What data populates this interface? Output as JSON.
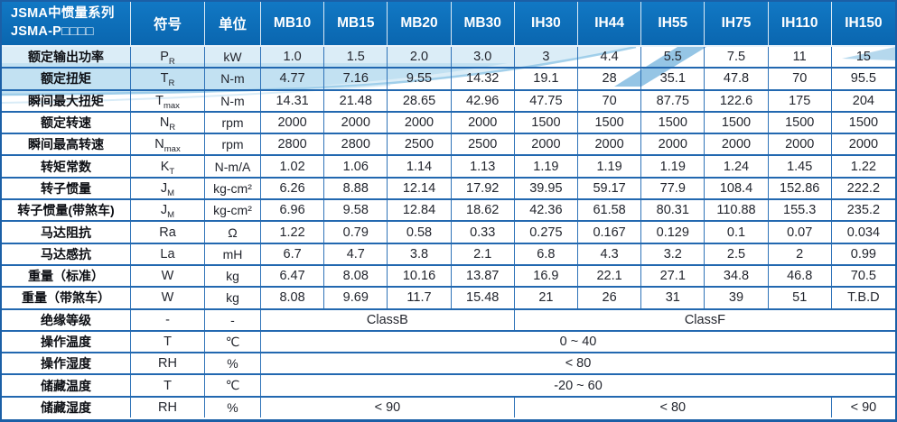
{
  "table": {
    "title_line1": "JSMA中惯量系列",
    "title_line2": "JSMA-P□□□□",
    "col_symbol": "符号",
    "col_unit": "单位",
    "models": [
      "MB10",
      "MB15",
      "MB20",
      "MB30",
      "IH30",
      "IH44",
      "IH55",
      "IH75",
      "IH110",
      "IH150"
    ],
    "rows": [
      {
        "label": "额定输出功率",
        "sym": "P",
        "sub": "R",
        "unit": "kW",
        "values": [
          "1.0",
          "1.5",
          "2.0",
          "3.0",
          "3",
          "4.4",
          "5.5",
          "7.5",
          "11",
          "15"
        ]
      },
      {
        "label": "额定扭矩",
        "sym": "T",
        "sub": "R",
        "unit": "N-m",
        "values": [
          "4.77",
          "7.16",
          "9.55",
          "14.32",
          "19.1",
          "28",
          "35.1",
          "47.8",
          "70",
          "95.5"
        ]
      },
      {
        "label": "瞬间最大扭矩",
        "sym": "T",
        "sub": "max",
        "unit": "N-m",
        "values": [
          "14.31",
          "21.48",
          "28.65",
          "42.96",
          "47.75",
          "70",
          "87.75",
          "122.6",
          "175",
          "204"
        ]
      },
      {
        "label": "额定转速",
        "sym": "N",
        "sub": "R",
        "unit": "rpm",
        "values": [
          "2000",
          "2000",
          "2000",
          "2000",
          "1500",
          "1500",
          "1500",
          "1500",
          "1500",
          "1500"
        ]
      },
      {
        "label": "瞬间最高转速",
        "sym": "N",
        "sub": "max",
        "unit": "rpm",
        "values": [
          "2800",
          "2800",
          "2500",
          "2500",
          "2000",
          "2000",
          "2000",
          "2000",
          "2000",
          "2000"
        ]
      },
      {
        "label": "转矩常数",
        "sym": "K",
        "sub": "T",
        "unit": "N-m/A",
        "values": [
          "1.02",
          "1.06",
          "1.14",
          "1.13",
          "1.19",
          "1.19",
          "1.19",
          "1.24",
          "1.45",
          "1.22"
        ]
      },
      {
        "label": "转子惯量",
        "sym": "J",
        "sub": "M",
        "unit": "kg-cm²",
        "values": [
          "6.26",
          "8.88",
          "12.14",
          "17.92",
          "39.95",
          "59.17",
          "77.9",
          "108.4",
          "152.86",
          "222.2"
        ]
      },
      {
        "label": "转子惯量(带煞车)",
        "sym": "J",
        "sub": "M",
        "unit": "kg-cm²",
        "values": [
          "6.96",
          "9.58",
          "12.84",
          "18.62",
          "42.36",
          "61.58",
          "80.31",
          "110.88",
          "155.3",
          "235.2"
        ]
      },
      {
        "label": "马达阻抗",
        "sym": "Ra",
        "sub": "",
        "unit": "Ω",
        "values": [
          "1.22",
          "0.79",
          "0.58",
          "0.33",
          "0.275",
          "0.167",
          "0.129",
          "0.1",
          "0.07",
          "0.034"
        ]
      },
      {
        "label": "马达感抗",
        "sym": "La",
        "sub": "",
        "unit": "mH",
        "values": [
          "6.7",
          "4.7",
          "3.8",
          "2.1",
          "6.8",
          "4.3",
          "3.2",
          "2.5",
          "2",
          "0.99"
        ]
      },
      {
        "label": "重量（标准）",
        "sym": "W",
        "sub": "",
        "unit": "kg",
        "values": [
          "6.47",
          "8.08",
          "10.16",
          "13.87",
          "16.9",
          "22.1",
          "27.1",
          "34.8",
          "46.8",
          "70.5"
        ]
      },
      {
        "label": "重量（带煞车）",
        "sym": "W",
        "sub": "",
        "unit": "kg",
        "values": [
          "8.08",
          "9.69",
          "11.7",
          "15.48",
          "21",
          "26",
          "31",
          "39",
          "51",
          "T.B.D"
        ]
      },
      {
        "label": "绝缘等级",
        "sym": "-",
        "sub": "",
        "unit": "-",
        "spans": [
          {
            "text": "ClassB",
            "cols": 4
          },
          {
            "text": "ClassF",
            "cols": 6
          }
        ]
      },
      {
        "label": "操作温度",
        "sym": "T",
        "sub": "",
        "unit": "℃",
        "spans": [
          {
            "text": "0 ~ 40",
            "cols": 10
          }
        ]
      },
      {
        "label": "操作湿度",
        "sym": "RH",
        "sub": "",
        "unit": "%",
        "spans": [
          {
            "text": "< 80",
            "cols": 10
          }
        ]
      },
      {
        "label": "储藏温度",
        "sym": "T",
        "sub": "",
        "unit": "℃",
        "spans": [
          {
            "text": "-20 ~ 60",
            "cols": 10
          }
        ]
      },
      {
        "label": "储藏湿度",
        "sym": "RH",
        "sub": "",
        "unit": "%",
        "spans": [
          {
            "text": "< 90",
            "cols": 4
          },
          {
            "text": "< 80",
            "cols": 5
          },
          {
            "text": "< 90",
            "cols": 1
          }
        ]
      }
    ]
  },
  "colors": {
    "header_bg": "#0c6cb6",
    "border": "#2268b0",
    "header_text": "#ffffff",
    "body_text": "#23262e",
    "swoosh_light": "#b8dcf0",
    "swoosh_deep": "#4f9fd4"
  }
}
